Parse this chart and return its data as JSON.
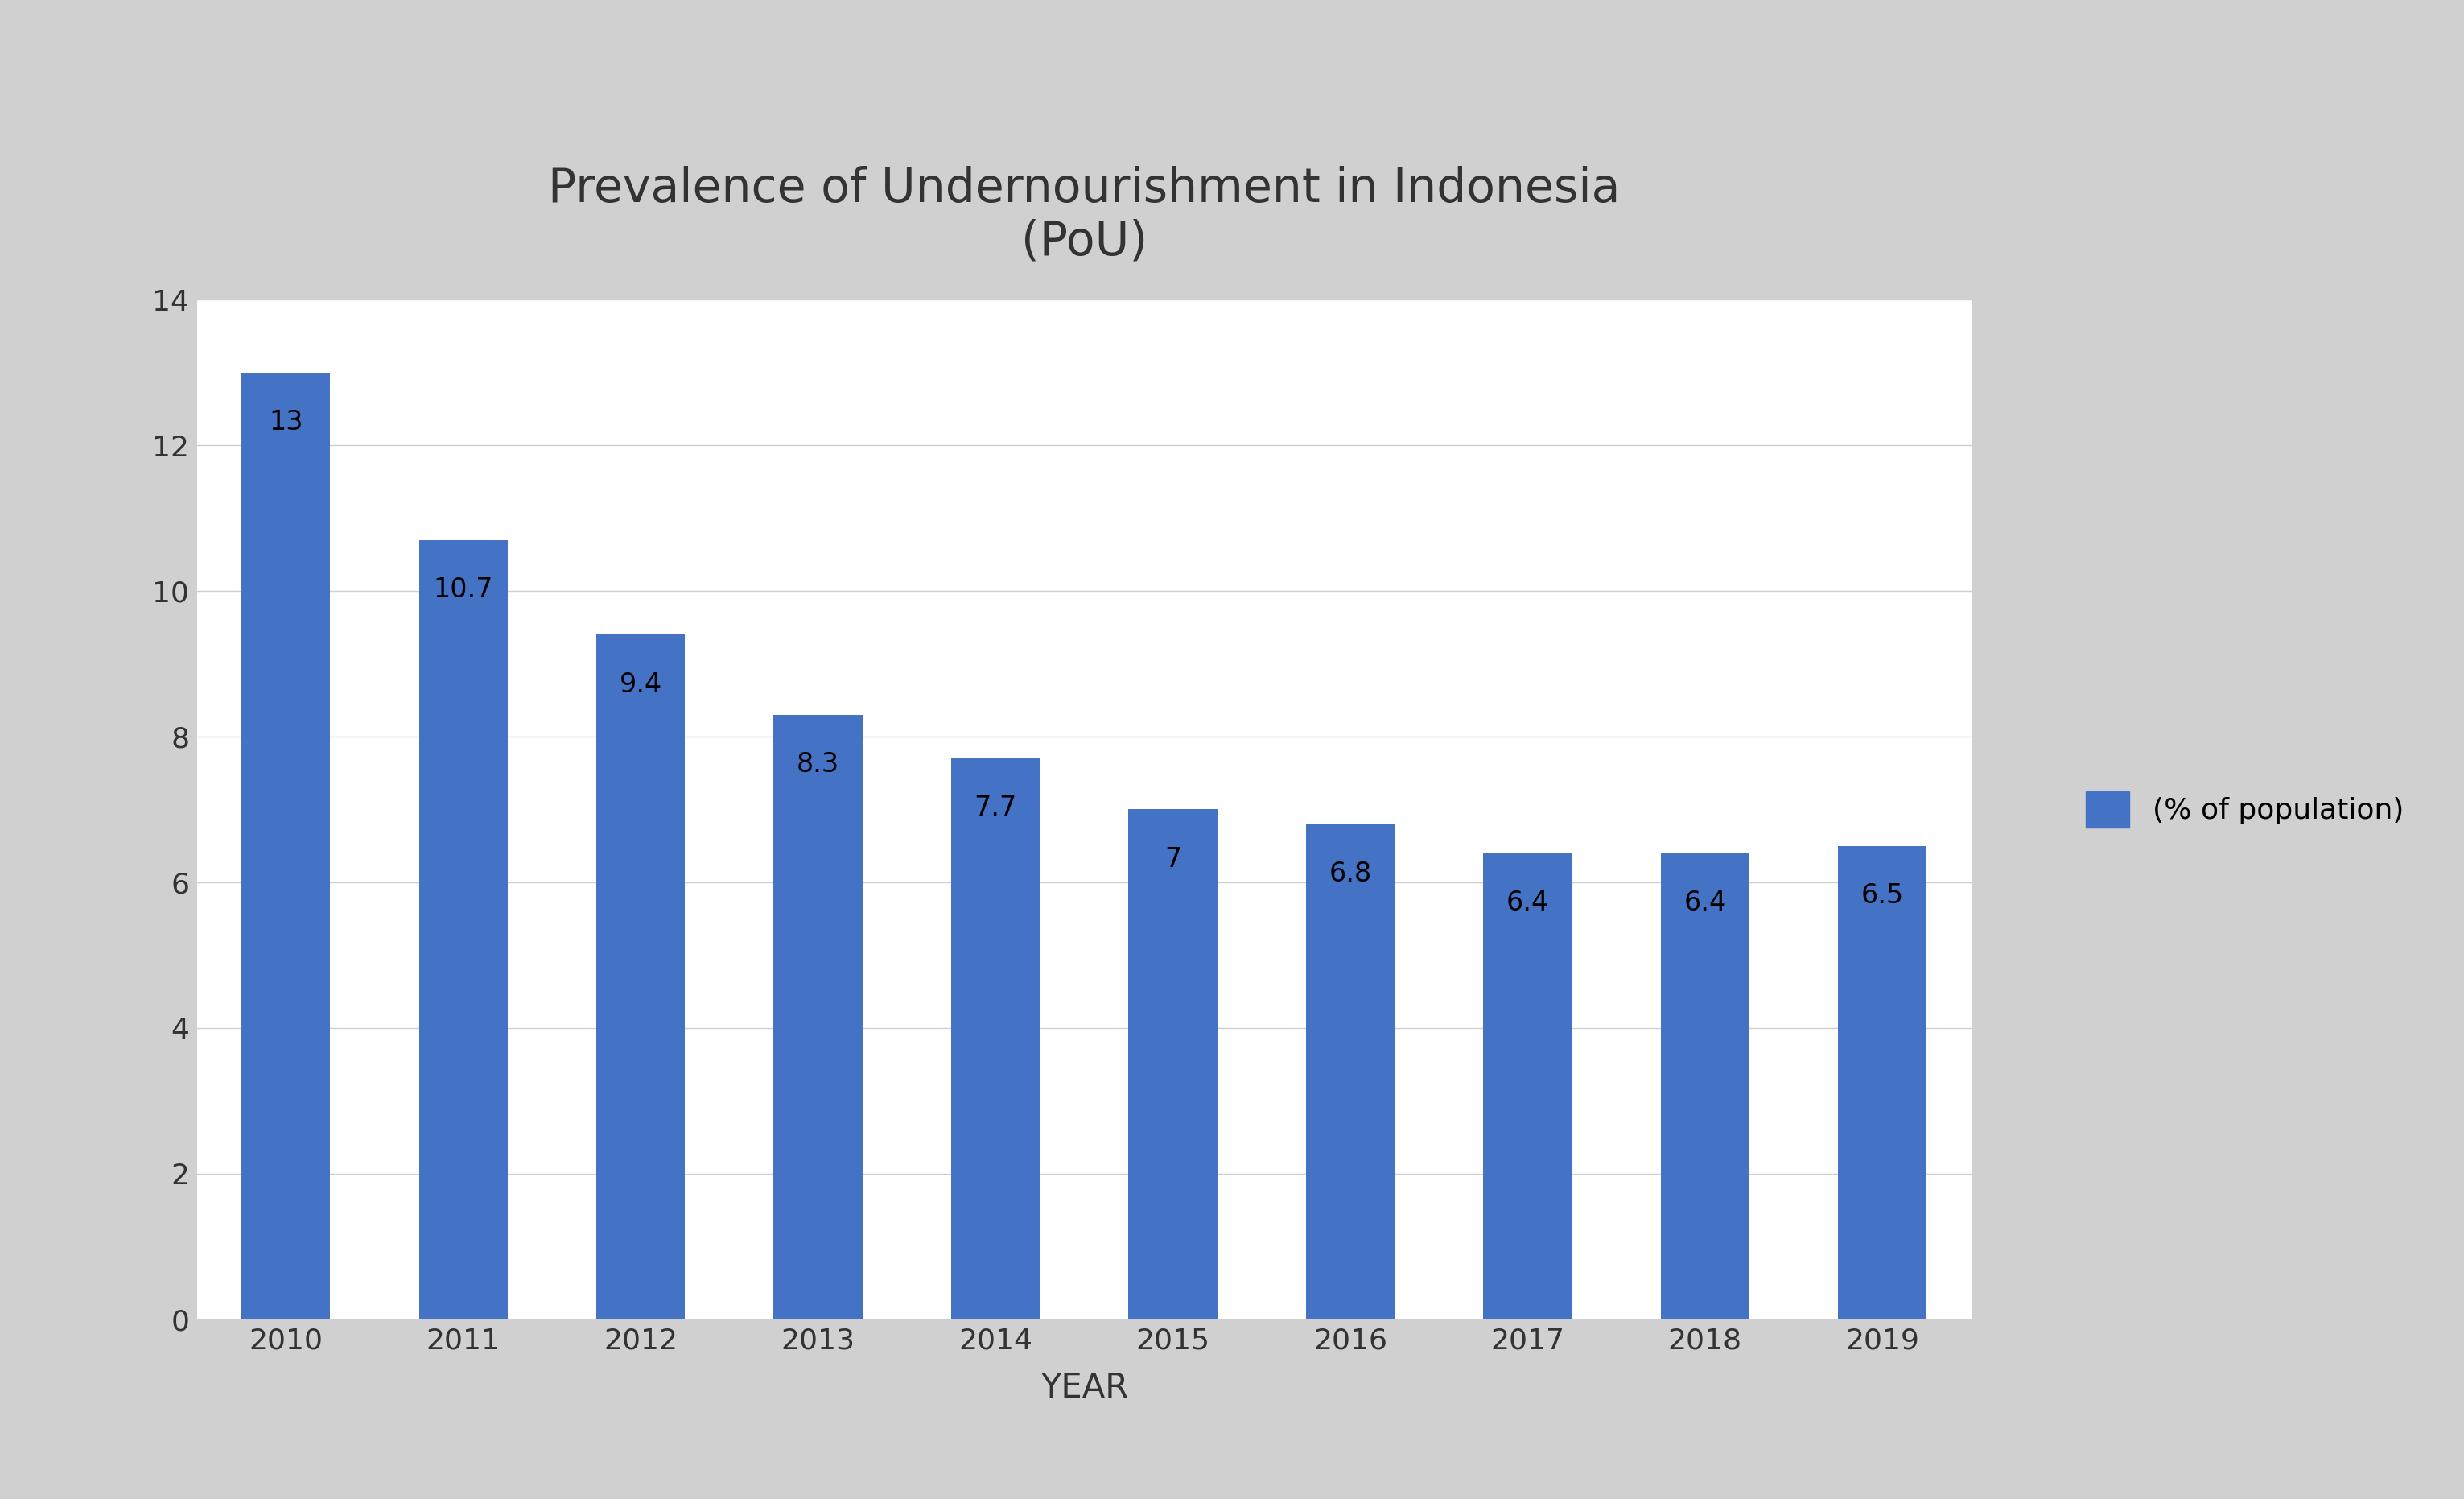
{
  "title": "Prevalence of Undernourishment in Indonesia\n(PoU)",
  "xlabel": "YEAR",
  "ylabel": "",
  "years": [
    "2010",
    "2011",
    "2012",
    "2013",
    "2014",
    "2015",
    "2016",
    "2017",
    "2018",
    "2019"
  ],
  "values": [
    13.0,
    10.7,
    9.4,
    8.3,
    7.7,
    7.0,
    6.8,
    6.4,
    6.4,
    6.5
  ],
  "bar_color": "#4472C4",
  "background_color": "#ffffff",
  "frame_color": "#d0d0d0",
  "ylim": [
    0,
    14
  ],
  "yticks": [
    0,
    2,
    4,
    6,
    8,
    10,
    12,
    14
  ],
  "legend_label": "(% of population)",
  "title_fontsize": 42,
  "label_fontsize": 30,
  "tick_fontsize": 26,
  "annotation_fontsize": 24,
  "legend_fontsize": 26,
  "bar_width": 0.5
}
